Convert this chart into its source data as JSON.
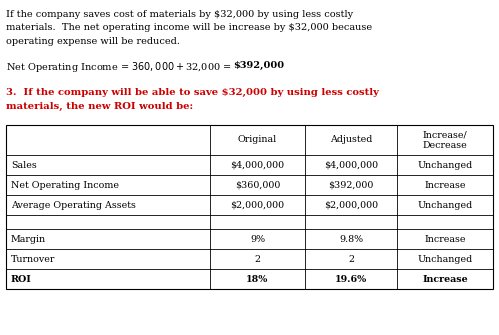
{
  "p1_lines": [
    "If the company saves cost of materials by $32,000 by using less costly",
    "materials.  The net operating income will be increase by $32,000 because",
    "operating expense will be reduced."
  ],
  "eq_prefix": "Net Operating Income = $360,000 + $32,000 = ",
  "eq_bold": "$392,000",
  "heading_lines": [
    "3.  If the company will be able to save $32,000 by using less costly",
    "materials, the new ROI would be:"
  ],
  "table_headers": [
    "",
    "Original",
    "Adjusted",
    "Increase/\nDecrease"
  ],
  "table_rows": [
    [
      "Sales",
      "$4,000,000",
      "$4,000,000",
      "Unchanged"
    ],
    [
      "Net Operating Income",
      "$360,000",
      "$392,000",
      "Increase"
    ],
    [
      "Average Operating Assets",
      "$2,000,000",
      "$2,000,000",
      "Unchanged"
    ],
    [
      "",
      "",
      "",
      ""
    ],
    [
      "Margin",
      "9%",
      "9.8%",
      "Increase"
    ],
    [
      "Turnover",
      "2",
      "2",
      "Unchanged"
    ],
    [
      "ROI",
      "18%",
      "19.6%",
      "Increase"
    ]
  ],
  "black": "#000000",
  "red": "#cc0000",
  "bg": "#ffffff",
  "font": "DejaVu Serif"
}
